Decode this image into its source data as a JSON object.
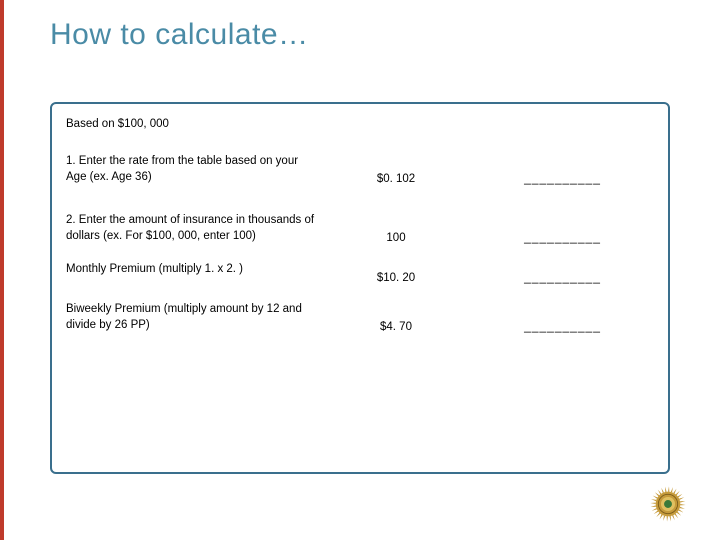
{
  "colors": {
    "accent": "#bf3a2b",
    "title": "#4a8ba6",
    "box_border": "#3a6f8d",
    "badge_outer": "#c59a3a",
    "badge_ring": "#7a5c1a",
    "badge_center": "#e0c060",
    "badge_green": "#3a7a3a"
  },
  "title": "How to calculate…",
  "box": {
    "basis": "Based on $100, 000",
    "rows": [
      {
        "instr": "1. Enter the rate from the table based on your Age (ex. Age 36)",
        "value": "$0. 102",
        "blank": "__________"
      },
      {
        "instr": "2. Enter the amount of insurance in thousands of dollars (ex. For $100, 000, enter 100)",
        "value": "100",
        "blank": "__________"
      },
      {
        "instr": "Monthly Premium (multiply 1. x  2. )",
        "value": "$10. 20",
        "blank": "__________"
      },
      {
        "instr": "Biweekly Premium (multiply amount by 12 and divide by 26 PP)",
        "value": "$4. 70",
        "blank": "__________"
      }
    ]
  },
  "typography": {
    "title_fontsize": 30,
    "body_fontsize": 11.5
  }
}
